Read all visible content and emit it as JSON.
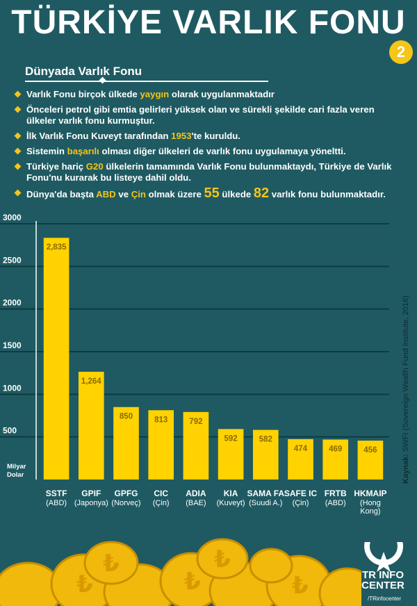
{
  "header": {
    "title": "TÜRKİYE VARLIK FONU",
    "issue_number": "2",
    "section_title": "Dünyada Varlık Fonu"
  },
  "bullets": [
    {
      "parts": [
        {
          "t": "Varlık Fonu birçok ülkede "
        },
        {
          "t": "yaygın",
          "hl": true
        },
        {
          "t": " olarak uygulanmaktadır"
        }
      ]
    },
    {
      "parts": [
        {
          "t": "Önceleri petrol gibi emtia gelirleri yüksek olan ve sürekli şekilde cari fazla veren ülkeler varlık fonu kurmuştur."
        }
      ]
    },
    {
      "parts": [
        {
          "t": "İlk Varlık Fonu Kuveyt tarafından "
        },
        {
          "t": "1953",
          "hl": true
        },
        {
          "t": "'te kuruldu."
        }
      ]
    },
    {
      "parts": [
        {
          "t": "Sistemin "
        },
        {
          "t": "başarılı",
          "hl": true
        },
        {
          "t": " olması diğer ülkeleri de varlık fonu uygulamaya yöneltti."
        }
      ]
    },
    {
      "parts": [
        {
          "t": "Türkiye hariç "
        },
        {
          "t": "G20",
          "hl": true
        },
        {
          "t": " ülkelerin tamamında Varlık Fonu bulunmaktaydı, Türkiye de Varlık Fonu'nu kurarak bu listeye dahil oldu."
        }
      ]
    },
    {
      "parts": [
        {
          "t": "Dünya'da başta "
        },
        {
          "t": "ABD",
          "hl": true
        },
        {
          "t": " ve "
        },
        {
          "t": "Çin",
          "hl": true
        },
        {
          "t": " olmak üzere "
        },
        {
          "t": "55",
          "hl": true,
          "big": true
        },
        {
          "t": " ülkede "
        },
        {
          "t": "82",
          "hl": true,
          "big": true
        },
        {
          "t": " varlık fonu bulunmaktadır."
        }
      ]
    }
  ],
  "chart_data": {
    "type": "bar",
    "categories": [
      "SSTF",
      "GPIF",
      "GPFG",
      "CIC",
      "ADIA",
      "KIA",
      "SAMA FA",
      "SAFE IC",
      "FRTB",
      "HKMAIP"
    ],
    "sublabels": [
      "(ABD)",
      "(Japonya)",
      "(Norveç)",
      "(Çin)",
      "(BAE)",
      "(Kuveyt)",
      "(Suudi A.)",
      "(Çin)",
      "(ABD)",
      "(Hong Kong)"
    ],
    "values": [
      2835,
      1264,
      850,
      813,
      792,
      592,
      582,
      474,
      469,
      456
    ],
    "value_labels": [
      "2,835",
      "1,264",
      "850",
      "813",
      "792",
      "592",
      "582",
      "474",
      "469",
      "456"
    ],
    "yticks": [
      3000,
      2500,
      2000,
      1500,
      1000,
      500
    ],
    "ylabel": "Milyar Dolar",
    "bar_color": "#ffd200",
    "grid": true
  },
  "source": {
    "label": "Kaynak:",
    "text": " SWFI (Sovereign Wealth Fund Institute, 2016)"
  },
  "logo": {
    "line1": "TR INFO",
    "line2": "CENTER",
    "handle": "/TRinfocenter"
  },
  "colors": {
    "background": "#1f5a62",
    "accent": "#f5c518"
  }
}
